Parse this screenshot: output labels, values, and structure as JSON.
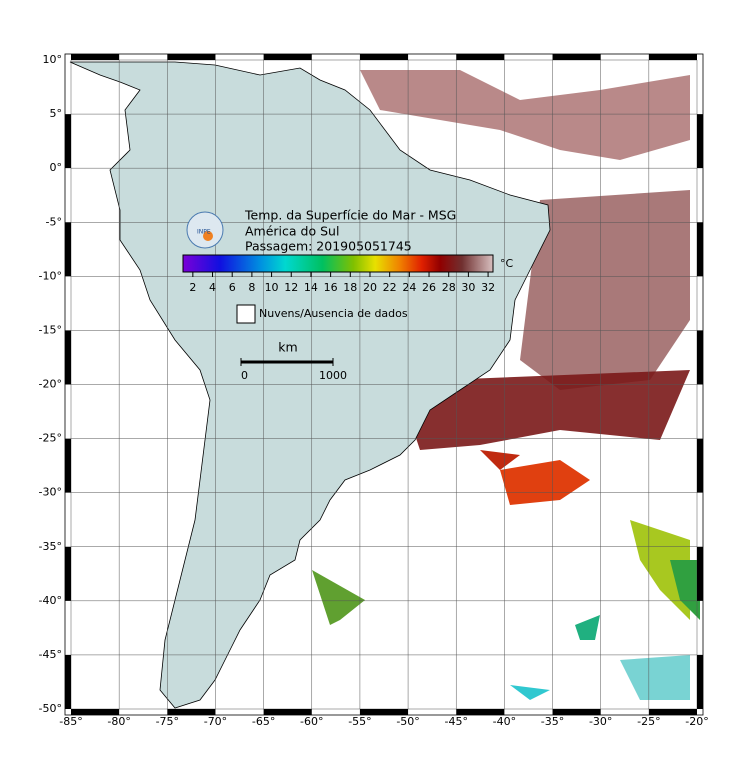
{
  "map": {
    "xlim": [
      -85,
      -20
    ],
    "ylim": [
      -50,
      10
    ],
    "xticks": [
      {
        "value": -85,
        "label": "-85°"
      },
      {
        "value": -80,
        "label": "-80°"
      },
      {
        "value": -75,
        "label": "-75°"
      },
      {
        "value": -70,
        "label": "-70°"
      },
      {
        "value": -65,
        "label": "-65°"
      },
      {
        "value": -60,
        "label": "-60°"
      },
      {
        "value": -55,
        "label": "-55°"
      },
      {
        "value": -50,
        "label": "-50°"
      },
      {
        "value": -45,
        "label": "-45°"
      },
      {
        "value": -40,
        "label": "-40°"
      },
      {
        "value": -35,
        "label": "-35°"
      },
      {
        "value": -30,
        "label": "-30°"
      },
      {
        "value": -25,
        "label": "-25°"
      },
      {
        "value": -20,
        "label": "-20°"
      }
    ],
    "yticks": [
      {
        "value": 10,
        "label": "10°"
      },
      {
        "value": 5,
        "label": "5°"
      },
      {
        "value": 0,
        "label": "0°"
      },
      {
        "value": -5,
        "label": "-5°"
      },
      {
        "value": -10,
        "label": "-10°"
      },
      {
        "value": -15,
        "label": "-15°"
      },
      {
        "value": -20,
        "label": "-20°"
      },
      {
        "value": -25,
        "label": "-25°"
      },
      {
        "value": -30,
        "label": "-30°"
      },
      {
        "value": -35,
        "label": "-35°"
      },
      {
        "value": -40,
        "label": "-40°"
      },
      {
        "value": -45,
        "label": "-45°"
      },
      {
        "value": -50,
        "label": "-50°"
      }
    ]
  },
  "title": {
    "line1": "Temp. da Superfície do Mar - MSG",
    "line2": "América do Sul",
    "line3": "Passagem: 201905051745"
  },
  "logo": "INPE",
  "colorbar": {
    "lim": [
      1,
      32.5
    ],
    "ticks": [
      2,
      4,
      6,
      8,
      10,
      12,
      14,
      16,
      18,
      20,
      22,
      24,
      26,
      28,
      30,
      32
    ],
    "unit": "°C"
  },
  "legend": "Nuvens/Ausencia de dados",
  "scale": {
    "unit": "km",
    "ticks": [
      0,
      1000
    ]
  }
}
